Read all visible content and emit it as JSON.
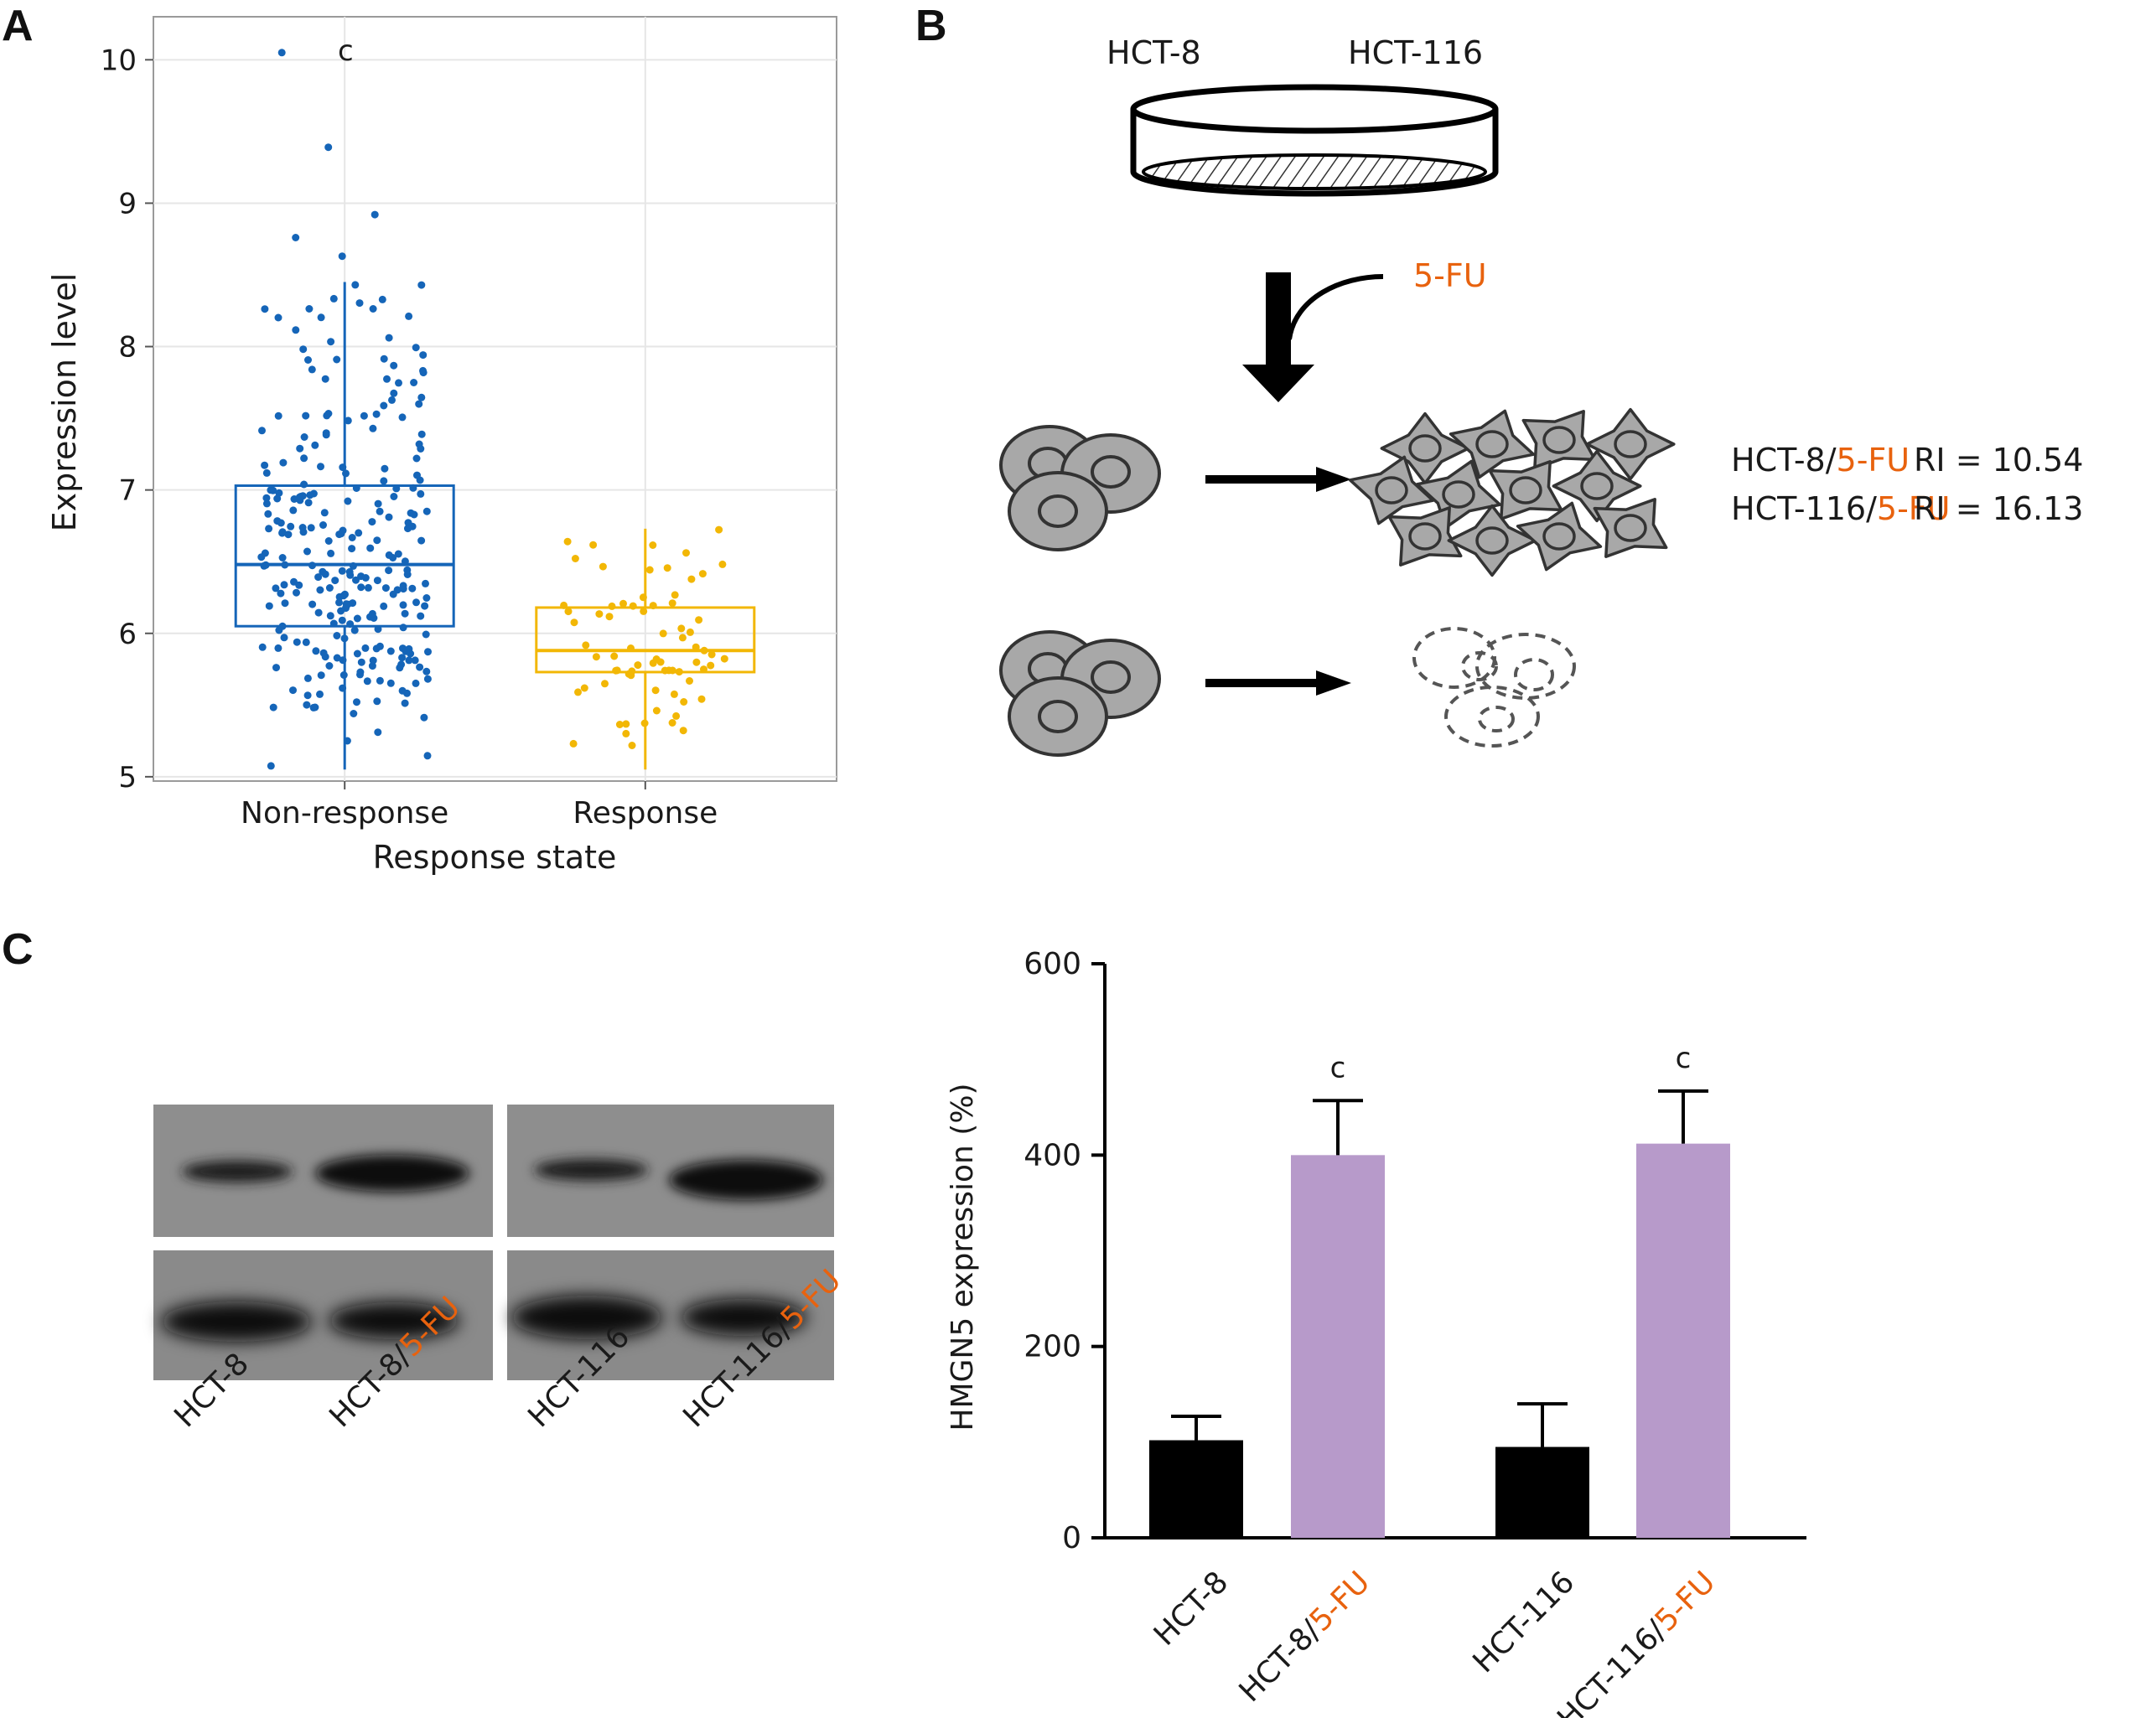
{
  "panels": {
    "a": "A",
    "b": "B",
    "c": "C"
  },
  "colors": {
    "non_response": "#1565b8",
    "response": "#f2b705",
    "orange_text": "#e8620e",
    "bar_black": "#000000",
    "bar_purple": "#b79aca",
    "cell_fill": "#a8a8a8"
  },
  "chart_data": [
    {
      "type": "scatter",
      "id": "panel_a",
      "title": "",
      "xlabel": "Response state",
      "ylabel": "Expression level",
      "categories": [
        "Non-response",
        "Response"
      ],
      "ylim": [
        4.97,
        10.3
      ],
      "yticks": [
        "5",
        "6",
        "7",
        "8",
        "9",
        "10"
      ],
      "grid": true,
      "annotation": "c",
      "series": [
        {
          "category": "Non-response",
          "box": {
            "min": 5.05,
            "q1": 6.05,
            "median": 6.48,
            "q3": 7.03,
            "max": 8.45
          },
          "outliers_high": [
            10.05,
            9.39,
            8.92,
            8.76,
            8.63
          ],
          "n_points": 260,
          "seed": 11
        },
        {
          "category": "Response",
          "box": {
            "min": 5.05,
            "q1": 5.73,
            "median": 5.88,
            "q3": 6.18,
            "max": 6.73
          },
          "n_points": 72,
          "seed": 23
        }
      ]
    },
    {
      "type": "bar",
      "id": "panel_c_bar",
      "title": "",
      "xlabel": "",
      "ylabel": "HMGN5 expression (%)",
      "ylim": [
        0,
        600
      ],
      "yticks": [
        "0",
        "200",
        "400",
        "600"
      ],
      "categories": [
        {
          "base": "HCT-8",
          "suffix": ""
        },
        {
          "base": "HCT-8/",
          "suffix": "5-FU"
        },
        {
          "base": "HCT-116",
          "suffix": ""
        },
        {
          "base": "HCT-116/",
          "suffix": "5-FU"
        }
      ],
      "values": [
        102,
        400,
        95,
        412
      ],
      "errors": [
        25,
        57,
        45,
        55
      ],
      "significance": [
        "",
        "c",
        "",
        "c"
      ]
    }
  ],
  "diagram_b": {
    "cell_line_1": "HCT-8",
    "cell_line_2": "HCT-116",
    "drug": "5-FU",
    "resistant": [
      {
        "base": "HCT-8/",
        "suffix": "5-FU",
        "ri": "RI = 10.54"
      },
      {
        "base": "HCT-116/",
        "suffix": "5-FU",
        "ri": "RI = 16.13"
      }
    ]
  },
  "blot_c": {
    "lanes": [
      {
        "base": "HCT-8",
        "suffix": ""
      },
      {
        "base": "HCT-8/",
        "suffix": "5-FU"
      },
      {
        "base": "HCT-116",
        "suffix": ""
      },
      {
        "base": "HCT-116/",
        "suffix": "5-FU"
      }
    ]
  }
}
